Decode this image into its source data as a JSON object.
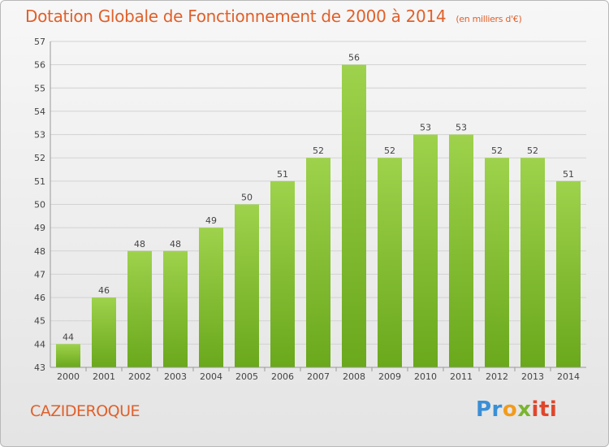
{
  "chart_data": {
    "type": "bar",
    "title": "Dotation Globale de Fonctionnement de 2000 à 2014",
    "subtitle": "(en milliers d'€)",
    "categories": [
      "2000",
      "2001",
      "2002",
      "2003",
      "2004",
      "2005",
      "2006",
      "2007",
      "2008",
      "2009",
      "2010",
      "2011",
      "2012",
      "2013",
      "2014"
    ],
    "values": [
      44,
      46,
      48,
      48,
      49,
      50,
      51,
      52,
      56,
      52,
      53,
      53,
      52,
      52,
      51
    ],
    "ylim": [
      43,
      57
    ],
    "yticks": [
      43,
      44,
      45,
      46,
      47,
      48,
      49,
      50,
      51,
      52,
      53,
      54,
      55,
      56,
      57
    ],
    "grid": true,
    "bar_color": "#7fbf2a"
  },
  "commune": "CAZIDEROQUE",
  "logo": {
    "parts": [
      "Pr",
      "o",
      "x",
      "iti"
    ],
    "colors": [
      "#3a8fd6",
      "#f29b1d",
      "#7ab530",
      "#e0462a"
    ]
  }
}
